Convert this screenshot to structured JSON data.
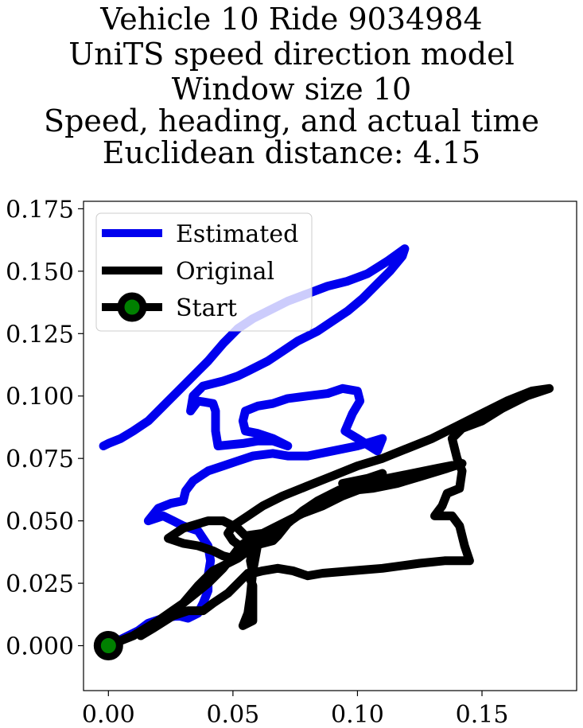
{
  "chart_data": {
    "type": "line",
    "title_lines": [
      "Vehicle 10 Ride 9034984",
      "UniTS speed direction model",
      "Window size 10",
      "Speed, heading, and actual time",
      "Euclidean distance: 4.15"
    ],
    "xlim": [
      -0.01,
      0.188
    ],
    "ylim": [
      -0.018,
      0.178
    ],
    "x_ticks": [
      0.0,
      0.05,
      0.1,
      0.15
    ],
    "x_tick_labels": [
      "0.00",
      "0.05",
      "0.10",
      "0.15"
    ],
    "y_ticks": [
      0.0,
      0.025,
      0.05,
      0.075,
      0.1,
      0.125,
      0.15,
      0.175
    ],
    "y_tick_labels": [
      "0.000",
      "0.025",
      "0.050",
      "0.075",
      "0.100",
      "0.125",
      "0.150",
      "0.175"
    ],
    "grid": false,
    "legend_position": "upper-left",
    "series": [
      {
        "name": "Estimated",
        "color": "#0000ee",
        "points": [
          [
            0.0,
            0.0
          ],
          [
            0.006,
            0.003
          ],
          [
            0.012,
            0.006
          ],
          [
            0.016,
            0.009
          ],
          [
            0.022,
            0.011
          ],
          [
            0.028,
            0.012
          ],
          [
            0.032,
            0.011
          ],
          [
            0.036,
            0.013
          ],
          [
            0.038,
            0.017
          ],
          [
            0.04,
            0.022
          ],
          [
            0.04,
            0.028
          ],
          [
            0.041,
            0.034
          ],
          [
            0.04,
            0.04
          ],
          [
            0.036,
            0.046
          ],
          [
            0.03,
            0.048
          ],
          [
            0.026,
            0.05
          ],
          [
            0.022,
            0.052
          ],
          [
            0.016,
            0.05
          ],
          [
            0.02,
            0.055
          ],
          [
            0.025,
            0.057
          ],
          [
            0.03,
            0.058
          ],
          [
            0.031,
            0.062
          ],
          [
            0.034,
            0.066
          ],
          [
            0.04,
            0.07
          ],
          [
            0.046,
            0.072
          ],
          [
            0.052,
            0.074
          ],
          [
            0.058,
            0.076
          ],
          [
            0.066,
            0.077
          ],
          [
            0.072,
            0.076
          ],
          [
            0.08,
            0.076
          ],
          [
            0.09,
            0.078
          ],
          [
            0.1,
            0.08
          ],
          [
            0.11,
            0.083
          ],
          [
            0.108,
            0.078
          ],
          [
            0.1,
            0.083
          ],
          [
            0.095,
            0.086
          ],
          [
            0.098,
            0.093
          ],
          [
            0.101,
            0.098
          ],
          [
            0.1,
            0.102
          ],
          [
            0.094,
            0.103
          ],
          [
            0.088,
            0.101
          ],
          [
            0.08,
            0.1
          ],
          [
            0.072,
            0.099
          ],
          [
            0.066,
            0.097
          ],
          [
            0.06,
            0.096
          ],
          [
            0.055,
            0.094
          ],
          [
            0.054,
            0.09
          ],
          [
            0.055,
            0.086
          ],
          [
            0.06,
            0.085
          ],
          [
            0.066,
            0.083
          ],
          [
            0.072,
            0.08
          ],
          [
            0.066,
            0.082
          ],
          [
            0.06,
            0.082
          ],
          [
            0.054,
            0.081
          ],
          [
            0.044,
            0.08
          ],
          [
            0.043,
            0.086
          ],
          [
            0.043,
            0.094
          ],
          [
            0.042,
            0.097
          ],
          [
            0.036,
            0.098
          ],
          [
            0.033,
            0.094
          ],
          [
            0.034,
            0.1
          ],
          [
            0.038,
            0.104
          ],
          [
            0.046,
            0.106
          ],
          [
            0.052,
            0.108
          ],
          [
            0.056,
            0.11
          ],
          [
            0.064,
            0.114
          ],
          [
            0.07,
            0.118
          ],
          [
            0.076,
            0.122
          ],
          [
            0.084,
            0.126
          ],
          [
            0.09,
            0.13
          ],
          [
            0.096,
            0.134
          ],
          [
            0.102,
            0.139
          ],
          [
            0.108,
            0.145
          ],
          [
            0.113,
            0.15
          ],
          [
            0.118,
            0.156
          ],
          [
            0.119,
            0.159
          ],
          [
            0.112,
            0.154
          ],
          [
            0.104,
            0.149
          ],
          [
            0.096,
            0.146
          ],
          [
            0.088,
            0.144
          ],
          [
            0.08,
            0.141
          ],
          [
            0.072,
            0.138
          ],
          [
            0.064,
            0.134
          ],
          [
            0.058,
            0.131
          ],
          [
            0.052,
            0.127
          ],
          [
            0.046,
            0.121
          ],
          [
            0.04,
            0.114
          ],
          [
            0.034,
            0.108
          ],
          [
            0.028,
            0.102
          ],
          [
            0.022,
            0.096
          ],
          [
            0.016,
            0.09
          ],
          [
            0.01,
            0.086
          ],
          [
            0.005,
            0.083
          ],
          [
            0.0,
            0.081
          ],
          [
            -0.002,
            0.08
          ]
        ]
      },
      {
        "name": "Original",
        "color": "#000000",
        "points": [
          [
            0.0,
            0.0
          ],
          [
            0.01,
            0.004
          ],
          [
            0.02,
            0.01
          ],
          [
            0.03,
            0.017
          ],
          [
            0.04,
            0.025
          ],
          [
            0.046,
            0.031
          ],
          [
            0.05,
            0.036
          ],
          [
            0.053,
            0.04
          ],
          [
            0.056,
            0.042
          ],
          [
            0.06,
            0.043
          ],
          [
            0.058,
            0.04
          ],
          [
            0.054,
            0.039
          ],
          [
            0.05,
            0.042
          ],
          [
            0.048,
            0.045
          ],
          [
            0.05,
            0.048
          ],
          [
            0.056,
            0.052
          ],
          [
            0.062,
            0.056
          ],
          [
            0.07,
            0.06
          ],
          [
            0.08,
            0.064
          ],
          [
            0.09,
            0.068
          ],
          [
            0.1,
            0.072
          ],
          [
            0.11,
            0.075
          ],
          [
            0.12,
            0.079
          ],
          [
            0.13,
            0.083
          ],
          [
            0.14,
            0.088
          ],
          [
            0.15,
            0.093
          ],
          [
            0.16,
            0.098
          ],
          [
            0.17,
            0.102
          ],
          [
            0.177,
            0.103
          ],
          [
            0.168,
            0.1
          ],
          [
            0.158,
            0.095
          ],
          [
            0.15,
            0.09
          ],
          [
            0.142,
            0.087
          ],
          [
            0.138,
            0.083
          ],
          [
            0.14,
            0.075
          ],
          [
            0.142,
            0.07
          ],
          [
            0.141,
            0.063
          ],
          [
            0.136,
            0.061
          ],
          [
            0.134,
            0.056
          ],
          [
            0.131,
            0.052
          ],
          [
            0.138,
            0.052
          ],
          [
            0.141,
            0.048
          ],
          [
            0.143,
            0.04
          ],
          [
            0.145,
            0.034
          ],
          [
            0.135,
            0.034
          ],
          [
            0.125,
            0.033
          ],
          [
            0.11,
            0.031
          ],
          [
            0.098,
            0.03
          ],
          [
            0.086,
            0.029
          ],
          [
            0.08,
            0.028
          ],
          [
            0.074,
            0.03
          ],
          [
            0.068,
            0.031
          ],
          [
            0.062,
            0.03
          ],
          [
            0.058,
            0.029
          ],
          [
            0.057,
            0.034
          ],
          [
            0.058,
            0.039
          ],
          [
            0.06,
            0.041
          ],
          [
            0.056,
            0.038
          ],
          [
            0.052,
            0.035
          ],
          [
            0.048,
            0.033
          ],
          [
            0.042,
            0.03
          ],
          [
            0.036,
            0.024
          ],
          [
            0.03,
            0.017
          ],
          [
            0.024,
            0.012
          ],
          [
            0.018,
            0.008
          ],
          [
            0.013,
            0.004
          ],
          [
            0.018,
            0.007
          ],
          [
            0.026,
            0.012
          ],
          [
            0.032,
            0.014
          ],
          [
            0.038,
            0.014
          ],
          [
            0.042,
            0.017
          ],
          [
            0.048,
            0.021
          ],
          [
            0.052,
            0.025
          ],
          [
            0.056,
            0.029
          ],
          [
            0.058,
            0.024
          ],
          [
            0.058,
            0.018
          ],
          [
            0.058,
            0.01
          ],
          [
            0.054,
            0.008
          ],
          [
            0.056,
            0.013
          ],
          [
            0.057,
            0.02
          ],
          [
            0.058,
            0.03
          ],
          [
            0.06,
            0.041
          ],
          [
            0.066,
            0.045
          ],
          [
            0.076,
            0.052
          ],
          [
            0.086,
            0.058
          ],
          [
            0.096,
            0.062
          ],
          [
            0.106,
            0.063
          ],
          [
            0.116,
            0.065
          ],
          [
            0.126,
            0.068
          ],
          [
            0.136,
            0.071
          ],
          [
            0.142,
            0.073
          ],
          [
            0.132,
            0.071
          ],
          [
            0.122,
            0.069
          ],
          [
            0.112,
            0.067
          ],
          [
            0.102,
            0.063
          ],
          [
            0.094,
            0.06
          ],
          [
            0.086,
            0.056
          ],
          [
            0.078,
            0.053
          ],
          [
            0.072,
            0.05
          ],
          [
            0.062,
            0.045
          ],
          [
            0.055,
            0.044
          ],
          [
            0.052,
            0.047
          ],
          [
            0.046,
            0.05
          ],
          [
            0.04,
            0.05
          ],
          [
            0.03,
            0.047
          ],
          [
            0.024,
            0.043
          ],
          [
            0.03,
            0.041
          ],
          [
            0.036,
            0.04
          ],
          [
            0.042,
            0.038
          ],
          [
            0.046,
            0.036
          ],
          [
            0.05,
            0.035
          ],
          [
            0.054,
            0.037
          ],
          [
            0.058,
            0.04
          ],
          [
            0.062,
            0.041
          ],
          [
            0.066,
            0.042
          ],
          [
            0.068,
            0.044
          ],
          [
            0.072,
            0.049
          ],
          [
            0.078,
            0.054
          ],
          [
            0.084,
            0.058
          ],
          [
            0.09,
            0.061
          ],
          [
            0.098,
            0.065
          ],
          [
            0.104,
            0.067
          ],
          [
            0.11,
            0.069
          ],
          [
            0.104,
            0.067
          ],
          [
            0.094,
            0.065
          ]
        ]
      }
    ],
    "legend": [
      {
        "label": "Estimated",
        "color": "#0000ee",
        "marker": "none"
      },
      {
        "label": "Original",
        "color": "#000000",
        "marker": "none"
      },
      {
        "label": "Start",
        "color": "#000000",
        "marker": "circle",
        "marker_face": "#008000"
      }
    ],
    "start_point": {
      "x": 0.0,
      "y": 0.0,
      "edge_color": "#000000",
      "face_color": "#008000"
    }
  }
}
